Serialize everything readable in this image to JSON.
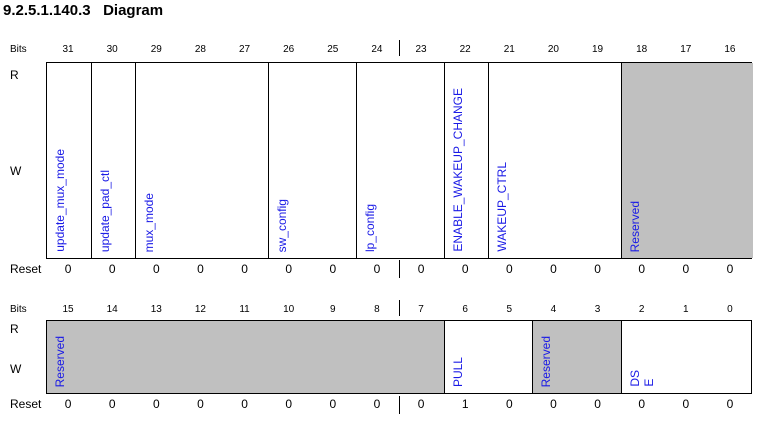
{
  "title": "9.2.5.1.140.3   Diagram",
  "labels": {
    "bits": "Bits",
    "read": "R",
    "write": "W",
    "reset": "Reset"
  },
  "colors": {
    "field_text": "#1a1ae6",
    "reserved_fill": "#c0c0c0"
  },
  "upper": {
    "bit_numbers": [
      "31",
      "30",
      "29",
      "28",
      "27",
      "26",
      "25",
      "24",
      "23",
      "22",
      "21",
      "20",
      "19",
      "18",
      "17",
      "16"
    ],
    "fields": [
      {
        "name": "update_mux_mode",
        "msb": 31,
        "lsb": 31,
        "reserved": false
      },
      {
        "name": "update_pad_ctl",
        "msb": 30,
        "lsb": 30,
        "reserved": false
      },
      {
        "name": "mux_mode",
        "msb": 29,
        "lsb": 27,
        "reserved": false
      },
      {
        "name": "sw_config",
        "msb": 26,
        "lsb": 25,
        "reserved": false
      },
      {
        "name": "lp_config",
        "msb": 24,
        "lsb": 23,
        "reserved": false
      },
      {
        "name": "ENABLE_WAKEUP_CHANGE",
        "msb": 22,
        "lsb": 22,
        "reserved": false
      },
      {
        "name": "WAKEUP_CTRL",
        "msb": 21,
        "lsb": 19,
        "reserved": false
      },
      {
        "name": "Reserved",
        "msb": 18,
        "lsb": 16,
        "reserved": true
      }
    ],
    "reset_values": [
      "0",
      "0",
      "0",
      "0",
      "0",
      "0",
      "0",
      "0",
      "0",
      "0",
      "0",
      "0",
      "0",
      "0",
      "0",
      "0"
    ]
  },
  "lower": {
    "bit_numbers": [
      "15",
      "14",
      "13",
      "12",
      "11",
      "10",
      "9",
      "8",
      "7",
      "6",
      "5",
      "4",
      "3",
      "2",
      "1",
      "0"
    ],
    "fields": [
      {
        "name": "Reserved",
        "msb": 15,
        "lsb": 7,
        "reserved": true
      },
      {
        "name": "PULL",
        "msb": 6,
        "lsb": 5,
        "reserved": false
      },
      {
        "name": "Reserved",
        "msb": 4,
        "lsb": 3,
        "reserved": true
      },
      {
        "name": "DS\nE",
        "msb": 2,
        "lsb": 0,
        "reserved": false
      }
    ],
    "reset_values": [
      "0",
      "0",
      "0",
      "0",
      "0",
      "0",
      "0",
      "0",
      "0",
      "1",
      "0",
      "0",
      "0",
      "0",
      "0",
      "0"
    ]
  }
}
